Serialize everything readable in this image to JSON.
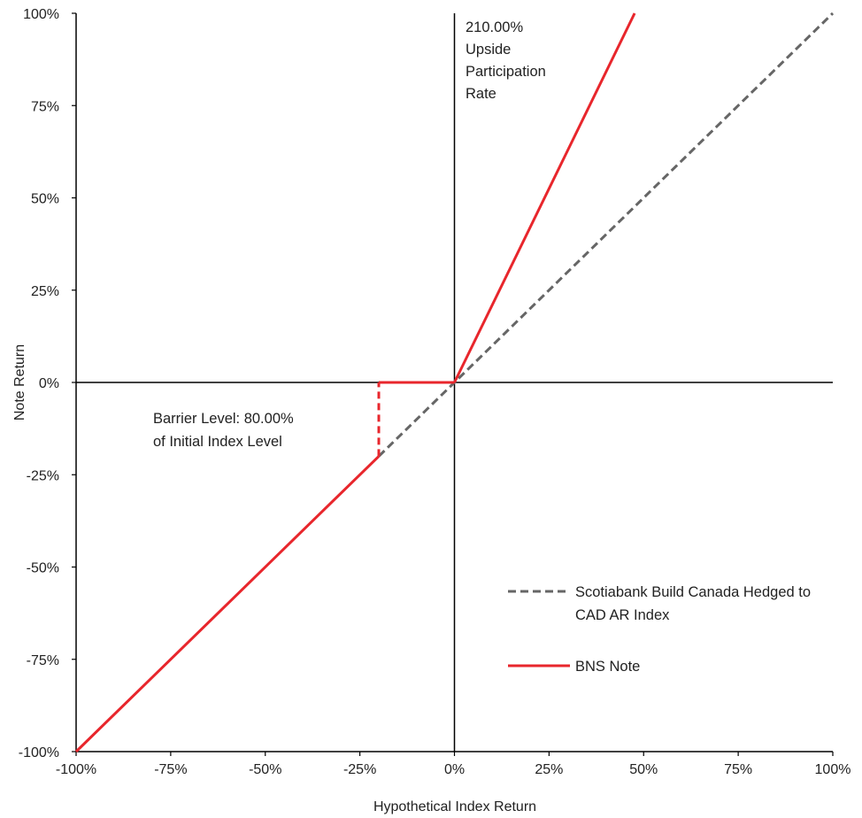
{
  "chart_data": {
    "type": "line",
    "xlabel": "Hypothetical Index Return",
    "ylabel": "Note Return",
    "xlim": [
      -100,
      100
    ],
    "ylim": [
      -100,
      100
    ],
    "x_ticks": [
      "-100%",
      "-75%",
      "-50%",
      "-25%",
      "0%",
      "25%",
      "50%",
      "75%",
      "100%"
    ],
    "y_ticks": [
      "100%",
      "75%",
      "50%",
      "25%",
      "0%",
      "-25%",
      "-50%",
      "-75%",
      "-100%"
    ],
    "series": [
      {
        "name": "Scotiabank Build Canada Hedged to CAD AR Index",
        "style": "dashed",
        "color": "#666666",
        "points": [
          [
            -20,
            -20
          ],
          [
            100,
            100
          ]
        ]
      },
      {
        "name": "BNS Note",
        "style": "solid",
        "color": "#e8262c",
        "points": [
          [
            -100,
            -100
          ],
          [
            -20,
            -20
          ],
          [
            -20,
            0
          ],
          [
            0,
            0
          ],
          [
            47.62,
            100
          ]
        ],
        "dashed_segment": [
          [
            -20,
            -20
          ],
          [
            -20,
            0
          ]
        ]
      }
    ],
    "annotations": [
      {
        "lines": [
          "210.00%",
          "Upside",
          "Participation",
          "Rate"
        ]
      },
      {
        "lines": [
          "Barrier Level: 80.00%",
          "of Initial Index Level"
        ]
      }
    ],
    "legend": {
      "placement": "bottom-right",
      "entries": [
        {
          "lines": [
            "Scotiabank Build Canada Hedged to",
            "CAD AR Index"
          ],
          "style": "dashed",
          "color": "#666666"
        },
        {
          "lines": [
            "BNS Note"
          ],
          "style": "solid",
          "color": "#e8262c"
        }
      ]
    },
    "grid": false
  }
}
